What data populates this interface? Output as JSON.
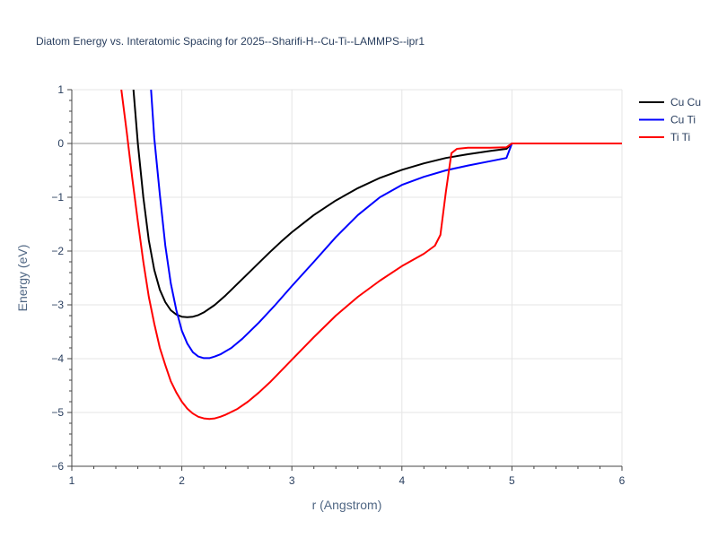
{
  "chart_data": {
    "type": "line",
    "title": "Diatom Energy vs. Interatomic Spacing for 2025--Sharifi-H--Cu-Ti--LAMMPS--ipr1",
    "xlabel": "r (Angstrom)",
    "ylabel": "Energy (eV)",
    "xlim": [
      1,
      6
    ],
    "ylim": [
      -6,
      1
    ],
    "xticks": [
      1,
      2,
      3,
      4,
      5,
      6
    ],
    "yticks": [
      1,
      0,
      -1,
      -2,
      -3,
      -4,
      -5,
      -6
    ],
    "ytick_labels": [
      "1",
      "0",
      "−1",
      "−2",
      "−3",
      "−4",
      "−5",
      "−6"
    ],
    "grid": true,
    "legend_position": "top-right",
    "series": [
      {
        "name": "Cu Cu",
        "color": "#000000",
        "x": [
          1.56,
          1.6,
          1.65,
          1.7,
          1.75,
          1.8,
          1.85,
          1.9,
          1.95,
          2.0,
          2.05,
          2.1,
          2.15,
          2.2,
          2.3,
          2.4,
          2.5,
          2.6,
          2.7,
          2.8,
          2.9,
          3.0,
          3.2,
          3.4,
          3.6,
          3.8,
          4.0,
          4.2,
          4.4,
          4.6,
          4.8,
          4.95,
          5.0,
          5.5,
          6.0
        ],
        "y": [
          1.0,
          0.0,
          -1.0,
          -1.8,
          -2.35,
          -2.72,
          -2.95,
          -3.1,
          -3.18,
          -3.22,
          -3.23,
          -3.22,
          -3.19,
          -3.14,
          -3.0,
          -2.82,
          -2.62,
          -2.42,
          -2.22,
          -2.02,
          -1.83,
          -1.65,
          -1.33,
          -1.06,
          -0.83,
          -0.64,
          -0.49,
          -0.37,
          -0.27,
          -0.2,
          -0.14,
          -0.1,
          0.0,
          0.0,
          0.0
        ]
      },
      {
        "name": "Cu Ti",
        "color": "#0000ff",
        "x": [
          1.72,
          1.75,
          1.8,
          1.85,
          1.9,
          1.95,
          2.0,
          2.05,
          2.1,
          2.15,
          2.2,
          2.25,
          2.3,
          2.35,
          2.45,
          2.55,
          2.7,
          2.85,
          3.0,
          3.2,
          3.4,
          3.6,
          3.8,
          4.0,
          4.2,
          4.4,
          4.6,
          4.8,
          4.95,
          5.0,
          5.5,
          6.0
        ],
        "y": [
          1.0,
          0.1,
          -0.95,
          -1.9,
          -2.6,
          -3.1,
          -3.48,
          -3.72,
          -3.88,
          -3.96,
          -3.99,
          -3.99,
          -3.96,
          -3.92,
          -3.8,
          -3.63,
          -3.33,
          -3.0,
          -2.65,
          -2.2,
          -1.74,
          -1.33,
          -1.0,
          -0.77,
          -0.62,
          -0.5,
          -0.41,
          -0.33,
          -0.27,
          0.0,
          0.0,
          0.0
        ]
      },
      {
        "name": "Ti Ti",
        "color": "#ff0000",
        "x": [
          1.45,
          1.5,
          1.55,
          1.6,
          1.65,
          1.7,
          1.75,
          1.8,
          1.85,
          1.9,
          1.95,
          2.0,
          2.05,
          2.1,
          2.15,
          2.2,
          2.25,
          2.3,
          2.35,
          2.4,
          2.5,
          2.6,
          2.7,
          2.8,
          3.0,
          3.2,
          3.4,
          3.6,
          3.8,
          4.0,
          4.2,
          4.3,
          4.35,
          4.4,
          4.45,
          4.5,
          4.6,
          4.8,
          4.95,
          5.0,
          5.5,
          6.0
        ],
        "y": [
          1.0,
          0.2,
          -0.65,
          -1.45,
          -2.2,
          -2.85,
          -3.35,
          -3.8,
          -4.12,
          -4.42,
          -4.63,
          -4.8,
          -4.93,
          -5.02,
          -5.08,
          -5.11,
          -5.12,
          -5.11,
          -5.08,
          -5.04,
          -4.94,
          -4.8,
          -4.63,
          -4.44,
          -4.02,
          -3.6,
          -3.2,
          -2.85,
          -2.55,
          -2.28,
          -2.05,
          -1.9,
          -1.7,
          -0.9,
          -0.18,
          -0.1,
          -0.08,
          -0.08,
          -0.07,
          0.0,
          0.0,
          0.0
        ]
      }
    ]
  }
}
